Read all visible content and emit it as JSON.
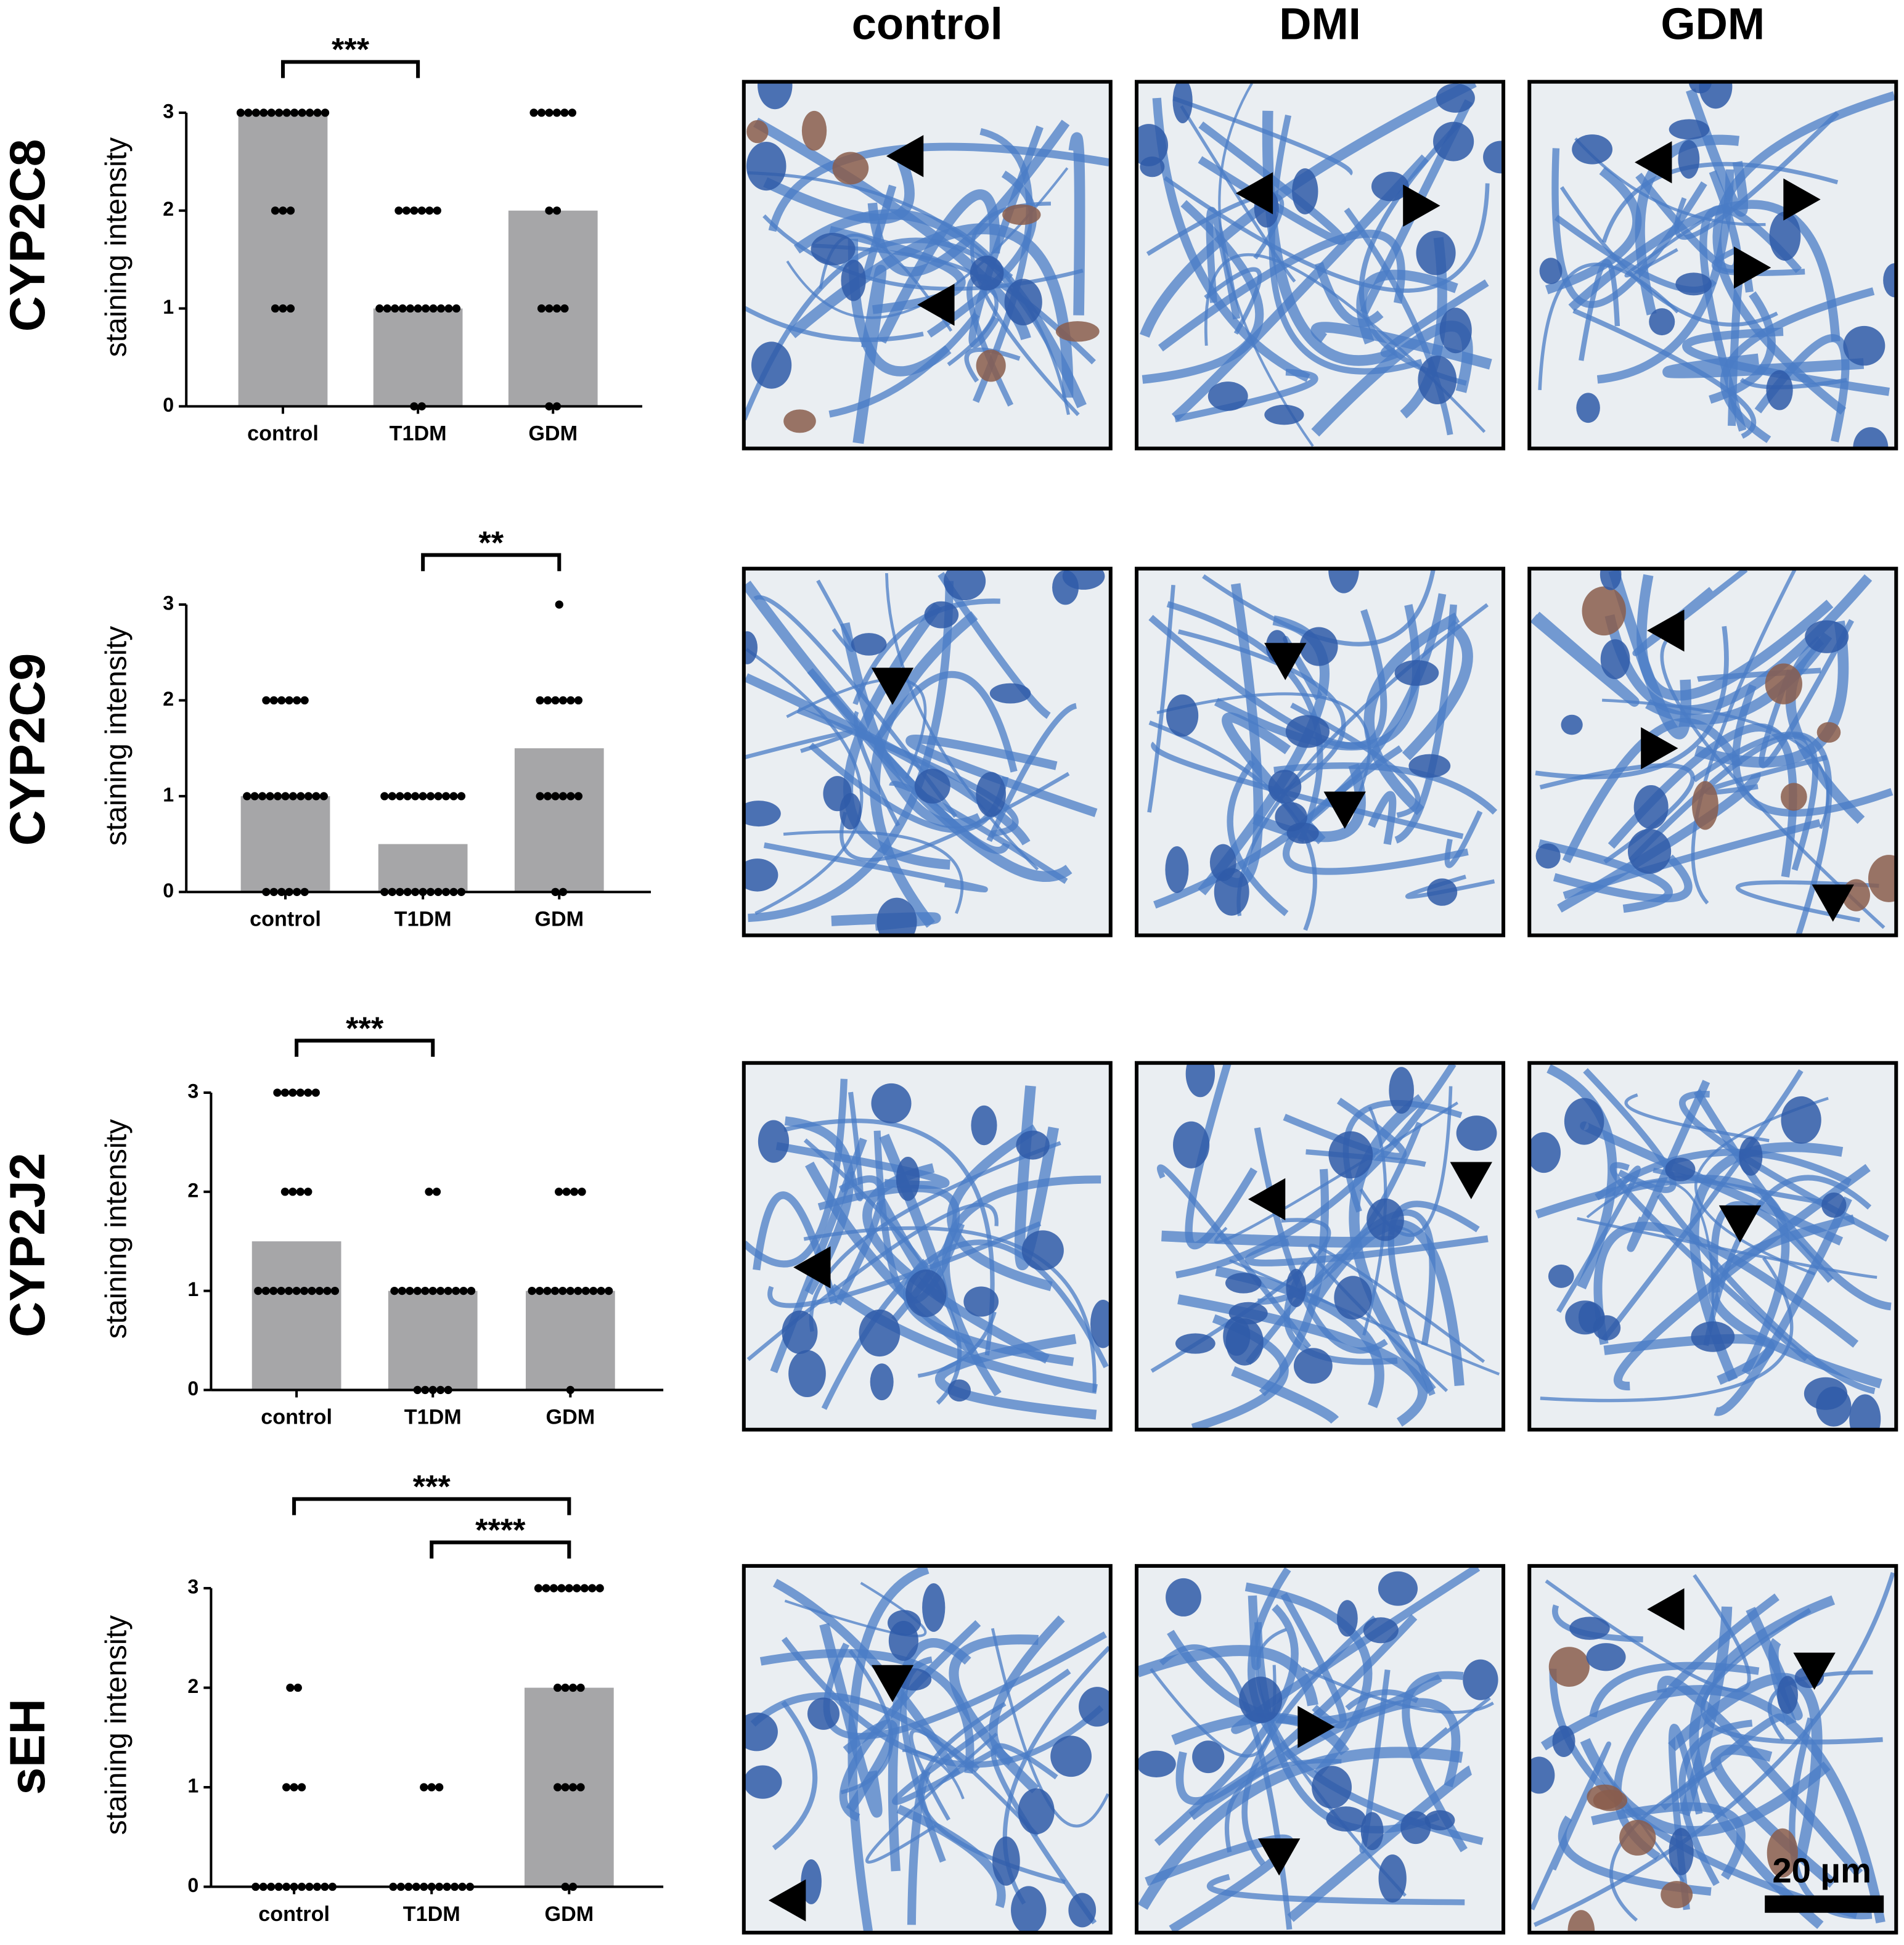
{
  "chart_data": [
    {
      "type": "bar",
      "title": "CYP2C8",
      "y_label": "staining intensity",
      "categories": [
        "control",
        "T1DM",
        "GDM"
      ],
      "values": [
        3,
        1,
        2
      ],
      "color": "#a6a6a8",
      "points": [
        [
          3,
          3,
          3,
          3,
          3,
          3,
          3,
          3,
          3,
          3,
          3,
          3,
          2,
          2,
          2,
          1,
          1,
          1
        ],
        [
          2,
          2,
          2,
          2,
          2,
          2,
          1,
          1,
          1,
          1,
          1,
          1,
          1,
          1,
          1,
          1,
          1,
          0,
          0
        ],
        [
          3,
          3,
          3,
          3,
          3,
          3,
          2,
          2,
          1,
          1,
          1,
          1,
          0,
          0
        ]
      ],
      "ylim": [
        0,
        3
      ],
      "yticks": [
        0,
        1,
        2,
        3
      ],
      "annotations": [
        "***"
      ]
    },
    {
      "type": "bar",
      "title": "CYP2C9",
      "y_label": "staining intensity",
      "categories": [
        "control",
        "T1DM",
        "GDM"
      ],
      "values": [
        1,
        0.5,
        1.5
      ],
      "color": "#a6a6a8",
      "points": [
        [
          2,
          2,
          2,
          2,
          2,
          2,
          1,
          1,
          1,
          1,
          1,
          1,
          1,
          1,
          1,
          1,
          1,
          0,
          0,
          0,
          0,
          0,
          0
        ],
        [
          1,
          1,
          1,
          1,
          1,
          1,
          1,
          1,
          1,
          1,
          1,
          0,
          0,
          0,
          0,
          0,
          0,
          0,
          0,
          0,
          0,
          0
        ],
        [
          3,
          2,
          2,
          2,
          2,
          2,
          2,
          1,
          1,
          1,
          1,
          1,
          1,
          0,
          0
        ]
      ],
      "ylim": [
        0,
        3
      ],
      "yticks": [
        0,
        1,
        2,
        3
      ],
      "annotations": [
        "**"
      ]
    },
    {
      "type": "bar",
      "title": "CYP2J2",
      "y_label": "staining intensity",
      "categories": [
        "control",
        "T1DM",
        "GDM"
      ],
      "values": [
        1.5,
        1,
        1
      ],
      "color": "#a6a6a8",
      "points": [
        [
          3,
          3,
          3,
          3,
          3,
          3,
          2,
          2,
          2,
          2,
          1,
          1,
          1,
          1,
          1,
          1,
          1,
          1,
          1,
          1,
          1
        ],
        [
          2,
          2,
          1,
          1,
          1,
          1,
          1,
          1,
          1,
          1,
          1,
          1,
          1,
          0,
          0,
          0,
          0,
          0
        ],
        [
          2,
          2,
          2,
          2,
          1,
          1,
          1,
          1,
          1,
          1,
          1,
          1,
          1,
          1,
          1,
          0
        ]
      ],
      "ylim": [
        0,
        3
      ],
      "yticks": [
        0,
        1,
        2,
        3
      ],
      "annotations": [
        "***"
      ]
    },
    {
      "type": "bar",
      "title": "sEH",
      "y_label": "staining intensity",
      "categories": [
        "control",
        "T1DM",
        "GDM"
      ],
      "values": [
        0,
        0,
        2
      ],
      "color": "#a6a6a8",
      "points": [
        [
          2,
          2,
          1,
          1,
          1,
          0,
          0,
          0,
          0,
          0,
          0,
          0,
          0,
          0,
          0,
          0
        ],
        [
          1,
          1,
          1,
          0,
          0,
          0,
          0,
          0,
          0,
          0,
          0,
          0,
          0,
          0
        ],
        [
          3,
          3,
          3,
          3,
          3,
          3,
          3,
          3,
          3,
          2,
          2,
          2,
          2,
          1,
          1,
          1,
          1,
          0,
          0
        ]
      ],
      "ylim": [
        0,
        3
      ],
      "yticks": [
        0,
        1,
        2,
        3
      ],
      "annotations": [
        "***",
        "****"
      ]
    }
  ],
  "images": {
    "columns": [
      "control",
      "DMI",
      "GDM"
    ],
    "scale_bar": "20 µm"
  }
}
